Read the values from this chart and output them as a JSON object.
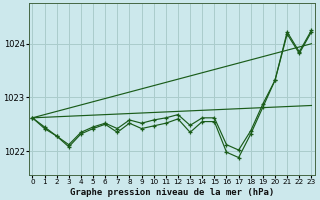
{
  "title": "Graphe pression niveau de la mer (hPa)",
  "bg_color": "#cce8ec",
  "grid_color": "#aacccc",
  "line_color": "#1a5c1a",
  "x_ticks": [
    0,
    1,
    2,
    3,
    4,
    5,
    6,
    7,
    8,
    9,
    10,
    11,
    12,
    13,
    14,
    15,
    16,
    17,
    18,
    19,
    20,
    21,
    22,
    23
  ],
  "y_ticks": [
    1022,
    1023,
    1024
  ],
  "ylim": [
    1021.55,
    1024.75
  ],
  "xlim": [
    -0.3,
    23.3
  ],
  "series": {
    "main": [
      1022.62,
      1022.45,
      1022.28,
      1022.08,
      1022.32,
      1022.42,
      1022.5,
      1022.35,
      1022.52,
      1022.42,
      1022.47,
      1022.52,
      1022.6,
      1022.35,
      1022.55,
      1022.55,
      1021.98,
      1021.88,
      1022.32,
      1022.82,
      1023.32,
      1024.18,
      1023.82,
      1024.22
    ],
    "trend1": [
      1022.62,
      1022.42,
      1022.28,
      1022.12,
      1022.35,
      1022.45,
      1022.52,
      1022.42,
      1022.58,
      1022.52,
      1022.58,
      1022.62,
      1022.68,
      1022.48,
      1022.62,
      1022.62,
      1022.12,
      1022.02,
      1022.38,
      1022.88,
      1023.32,
      1024.22,
      1023.85,
      1024.25
    ],
    "linear_steep": [
      1022.62,
      1022.68,
      1022.74,
      1022.8,
      1022.86,
      1022.92,
      1022.98,
      1023.04,
      1023.1,
      1023.16,
      1023.22,
      1023.28,
      1023.34,
      1023.4,
      1023.46,
      1023.52,
      1023.58,
      1023.64,
      1023.7,
      1023.76,
      1023.82,
      1023.88,
      1023.94,
      1024.0
    ],
    "linear_shallow": [
      1022.62,
      1022.63,
      1022.64,
      1022.65,
      1022.66,
      1022.67,
      1022.68,
      1022.69,
      1022.7,
      1022.71,
      1022.72,
      1022.73,
      1022.74,
      1022.75,
      1022.76,
      1022.77,
      1022.78,
      1022.79,
      1022.8,
      1022.81,
      1022.82,
      1022.83,
      1022.84,
      1022.85
    ]
  }
}
